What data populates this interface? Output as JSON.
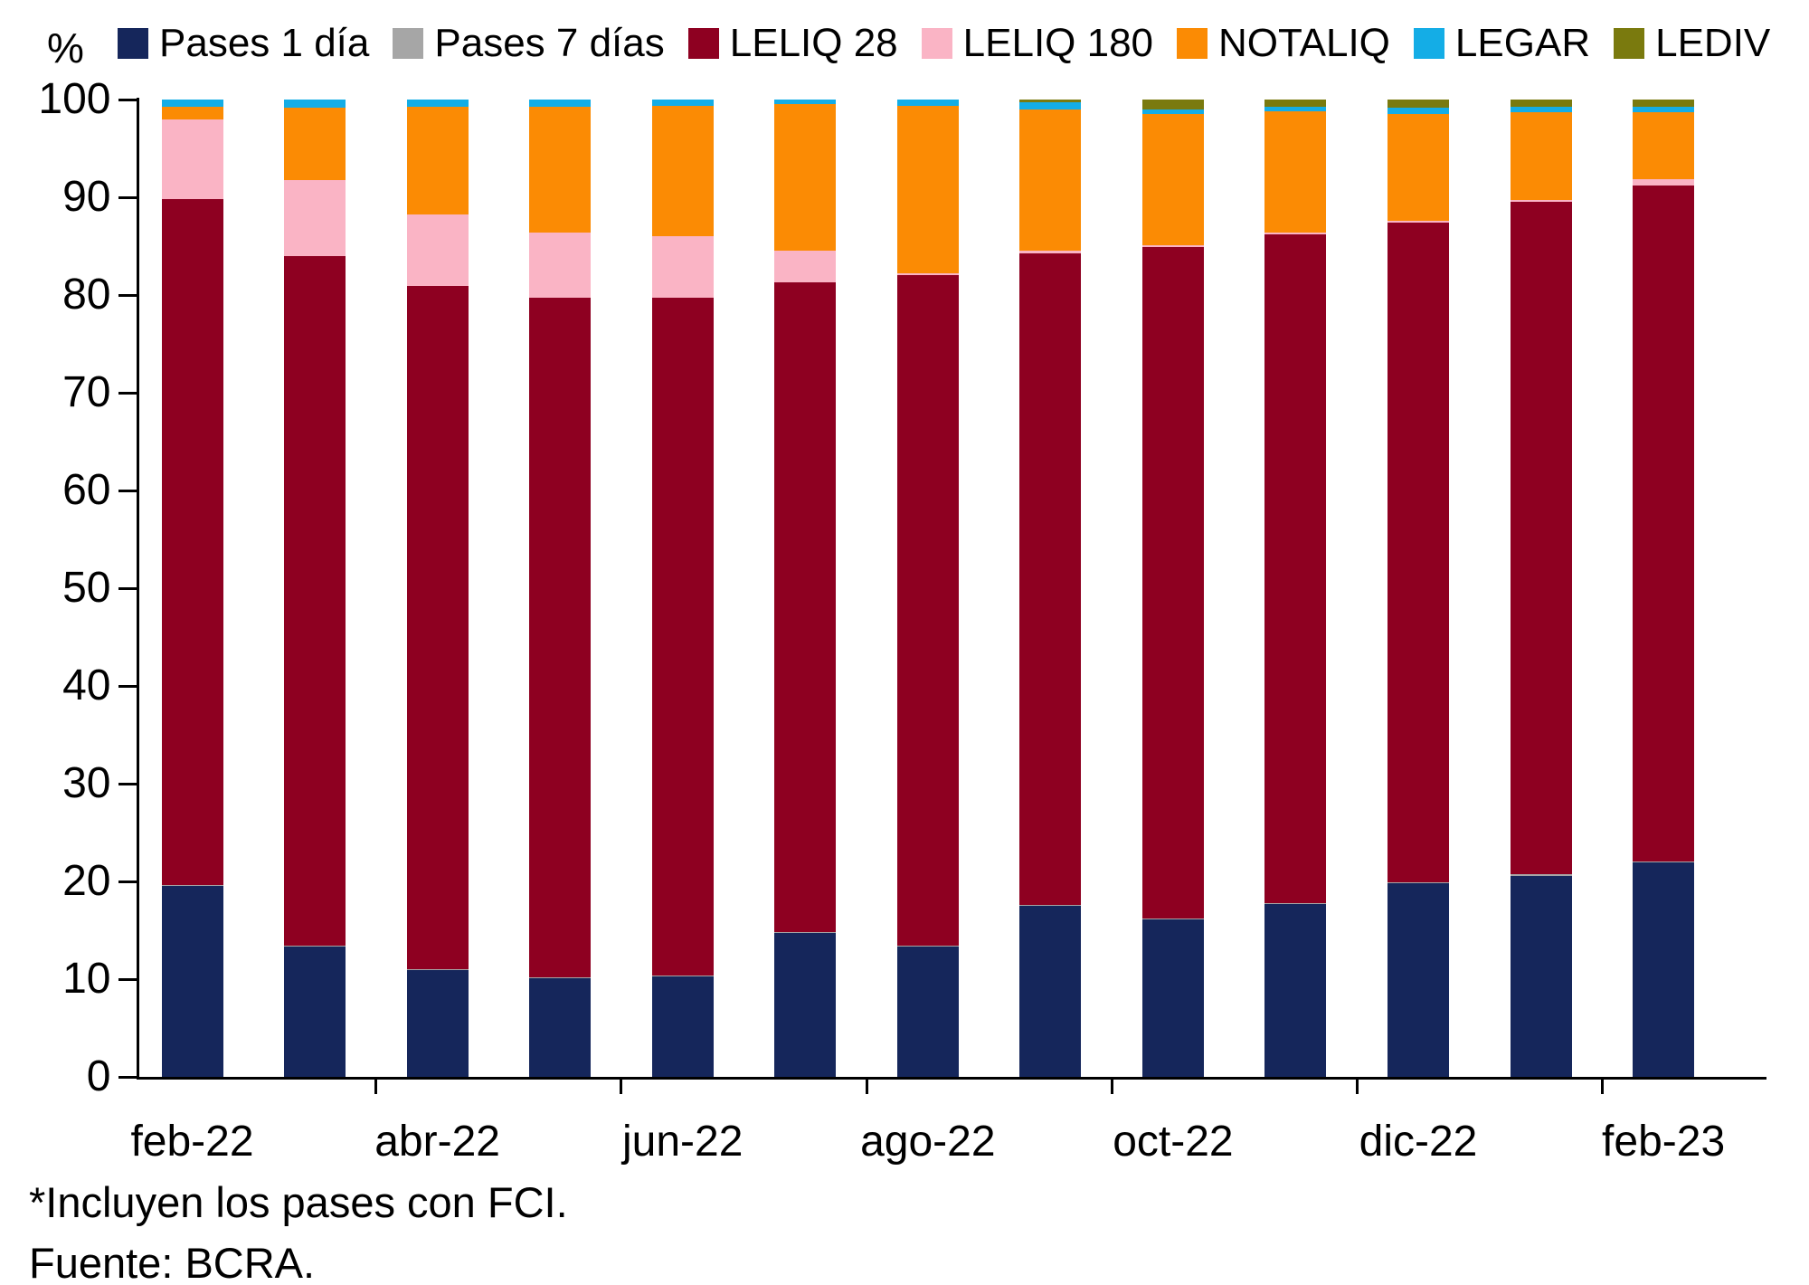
{
  "unit_label": "%",
  "footnotes": {
    "note": "*Incluyen los pases con FCI.",
    "source": "Fuente: BCRA."
  },
  "chart_data": {
    "type": "bar",
    "stacked": true,
    "stack_total": 100,
    "title": "",
    "xlabel": "",
    "ylabel": "%",
    "ylim": [
      0,
      100
    ],
    "y_ticks": [
      0,
      10,
      20,
      30,
      40,
      50,
      60,
      70,
      80,
      90,
      100
    ],
    "grid": false,
    "legend_position": "top",
    "categories": [
      "feb-22",
      "mar-22",
      "abr-22",
      "may-22",
      "jun-22",
      "jul-22",
      "ago-22",
      "sep-22",
      "oct-22",
      "nov-22",
      "dic-22",
      "ene-23",
      "feb-23"
    ],
    "x_axis_labels": [
      "feb-22",
      "abr-22",
      "jun-22",
      "ago-22",
      "oct-22",
      "dic-22",
      "feb-23"
    ],
    "x_axis_labeled_category_indexes": [
      0,
      2,
      4,
      6,
      8,
      10,
      12
    ],
    "series": [
      {
        "name": "Pases 1 día",
        "color": "#15265B",
        "values": [
          19.5,
          13.3,
          10.9,
          10.1,
          10.3,
          14.7,
          13.3,
          17.5,
          16.1,
          17.7,
          19.8,
          20.6,
          21.9
        ]
      },
      {
        "name": "Pases 7 días",
        "color": "#A6A6A6",
        "values": [
          0.1,
          0.1,
          0.1,
          0.1,
          0.1,
          0.1,
          0.1,
          0.1,
          0.1,
          0.1,
          0.1,
          0.1,
          0.1
        ]
      },
      {
        "name": "LELIQ 28",
        "color": "#8E0021",
        "values": [
          70.2,
          70.6,
          69.9,
          69.5,
          69.3,
          66.5,
          68.6,
          66.7,
          68.7,
          68.4,
          67.5,
          68.8,
          69.2
        ]
      },
      {
        "name": "LELIQ 180",
        "color": "#FAB4C5",
        "values": [
          8.2,
          7.8,
          7.3,
          6.7,
          6.3,
          3.2,
          0.2,
          0.2,
          0.2,
          0.2,
          0.2,
          0.2,
          0.7
        ]
      },
      {
        "name": "NOTALIQ",
        "color": "#FB8B04",
        "values": [
          1.3,
          7.4,
          11.1,
          12.9,
          13.4,
          15.0,
          17.2,
          14.5,
          13.4,
          12.4,
          10.9,
          9.0,
          6.8
        ]
      },
      {
        "name": "LEGAR",
        "color": "#14ADE6",
        "values": [
          0.7,
          0.8,
          0.7,
          0.7,
          0.6,
          0.5,
          0.6,
          0.7,
          0.5,
          0.5,
          0.7,
          0.6,
          0.6
        ]
      },
      {
        "name": "LEDIV",
        "color": "#7A7A0E",
        "values": [
          0.0,
          0.0,
          0.0,
          0.0,
          0.0,
          0.0,
          0.0,
          0.3,
          1.0,
          0.7,
          0.8,
          0.7,
          0.7
        ]
      }
    ]
  }
}
